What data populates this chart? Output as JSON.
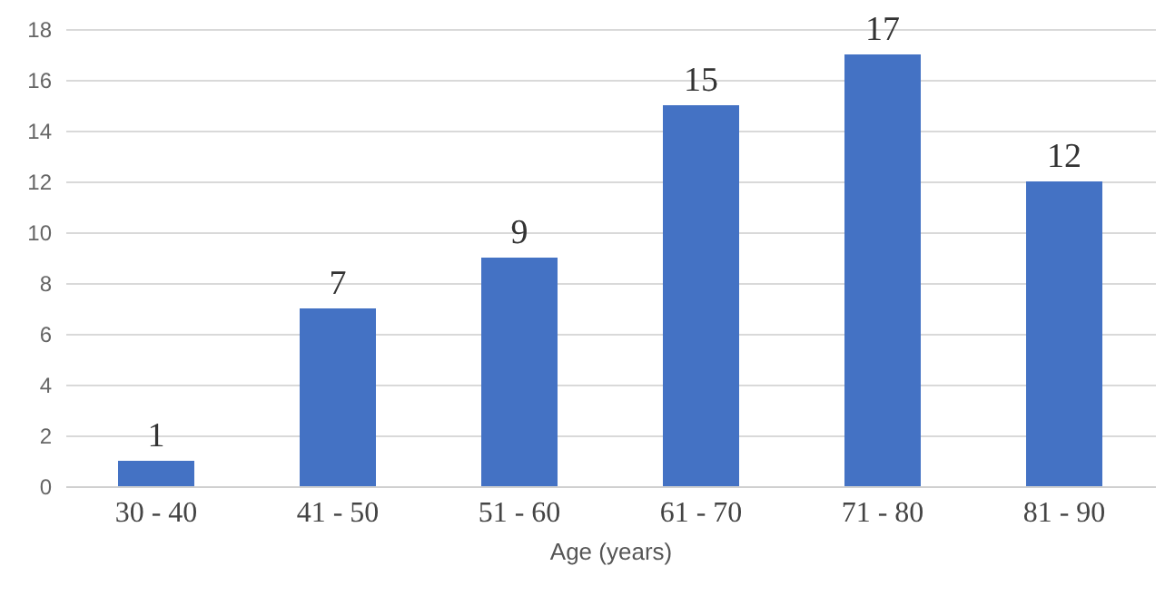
{
  "chart_data": {
    "type": "bar",
    "xlabel": "Age (years)",
    "categories": [
      "30 - 40",
      "41 - 50",
      "51 - 60",
      "61 - 70",
      "71 - 80",
      "81 - 90"
    ],
    "values": [
      1,
      7,
      9,
      15,
      17,
      12
    ],
    "color": "#4472c4",
    "ylim": [
      0,
      18
    ],
    "yticks": [
      0,
      2,
      4,
      6,
      8,
      10,
      12,
      14,
      16,
      18
    ],
    "grid": "y",
    "data_labels": true
  }
}
